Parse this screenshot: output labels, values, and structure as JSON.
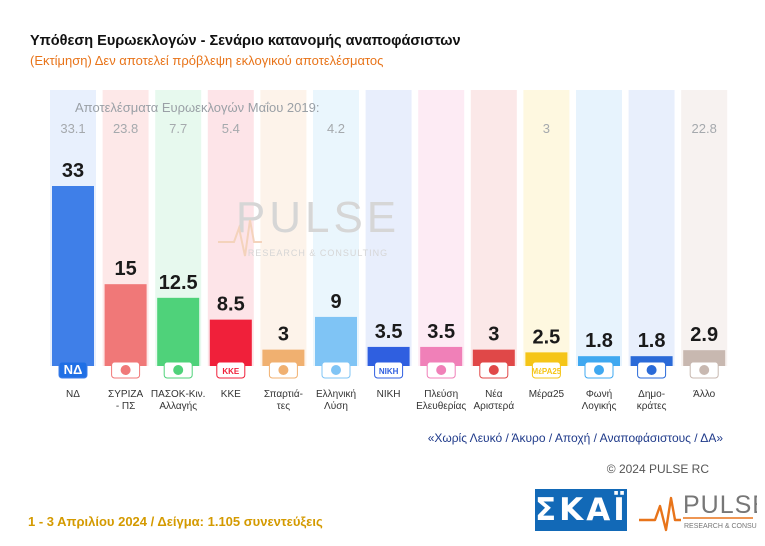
{
  "header": {
    "title": "Υπόθεση Ευρωεκλογών - Σενάριο κατανομής αναποφάσιστων",
    "subtitle": "(Εκτίμηση)   Δεν αποτελεί πρόβλεψη εκλογικού αποτελέσματος"
  },
  "chart_data": {
    "type": "bar",
    "reference_label": "Αποτελέσματα Ευρωεκλογών Μαΐου 2019:",
    "categories": [
      "ΝΔ",
      "ΣΥΡΙΖΑ - ΠΣ",
      "ΠΑΣΟΚ-Κιν. Αλλαγής",
      "ΚΚΕ",
      "Σπαρτιά- τες",
      "Ελληνική Λύση",
      "ΝΙΚΗ",
      "Πλεύση Ελευθερίας",
      "Νέα Αριστερά",
      "Μέρα25",
      "Φωνή Λογικής",
      "Δημο- κράτες",
      "Άλλο"
    ],
    "category_lines": [
      [
        "ΝΔ"
      ],
      [
        "ΣΥΡΙΖΑ",
        "- ΠΣ"
      ],
      [
        "ΠΑΣΟΚ-Κιν.",
        "Αλλαγής"
      ],
      [
        "ΚΚΕ"
      ],
      [
        "Σπαρτιά-",
        "τες"
      ],
      [
        "Ελληνική",
        "Λύση"
      ],
      [
        "ΝΙΚΗ"
      ],
      [
        "Πλεύση",
        "Ελευθερίας"
      ],
      [
        "Νέα",
        "Αριστερά"
      ],
      [
        "Μέρα25"
      ],
      [
        "Φωνή",
        "Λογικής"
      ],
      [
        "Δημο-",
        "κράτες"
      ],
      [
        "Άλλο"
      ]
    ],
    "values": [
      33,
      15,
      12.5,
      8.5,
      3,
      9,
      3.5,
      3.5,
      3,
      2.5,
      1.8,
      1.8,
      2.9
    ],
    "value_labels": [
      "33",
      "15",
      "12.5",
      "8.5",
      "3",
      "9",
      "3.5",
      "3.5",
      "3",
      "2.5",
      "1.8",
      "1.8",
      "2.9"
    ],
    "results_2019": [
      "33.1",
      "23.8",
      "7.7",
      "5.4",
      "",
      "4.2",
      "",
      "",
      "",
      "3",
      "",
      "",
      "22.8"
    ],
    "colors": [
      "#3f7fe8",
      "#f07878",
      "#4fd27a",
      "#f0203a",
      "#f0b070",
      "#7fc4f5",
      "#2f5fe0",
      "#f080b8",
      "#e04848",
      "#f5c518",
      "#3fa8f0",
      "#2a6ad8",
      "#c8b8b0"
    ],
    "background_colors": [
      "#e8f0fd",
      "#fde8e8",
      "#e7f9ee",
      "#fde4e8",
      "#fdf3ea",
      "#eaf6fd",
      "#e8eefc",
      "#fdebf4",
      "#fbe8e8",
      "#fef8e0",
      "#e7f3fd",
      "#e8effc",
      "#f7f2f0"
    ],
    "logo_icons": [
      "nd-logo-icon",
      "syriza-logo-icon",
      "pasok-logo-icon",
      "kke-logo-icon",
      "spartiates-logo-icon",
      "elliniki-lysi-logo-icon",
      "niki-logo-icon",
      "plefsi-logo-icon",
      "nea-aristera-logo-icon",
      "mera25-logo-icon",
      "foni-logikis-logo-icon",
      "dimokrates-logo-icon",
      "allo-icon"
    ],
    "logo_text": [
      "ΝΔ",
      "",
      "",
      "ΚΚΕ",
      "",
      "",
      "ΝΙΚΗ",
      "",
      "",
      "ΜέΡΑ25",
      "",
      "",
      ""
    ],
    "ylim": [
      0,
      33
    ],
    "grid": false
  },
  "watermark": {
    "brand": "PULSE",
    "tagline": "RESEARCH & CONSULTING"
  },
  "note": "«Χωρίς Λευκό / Άκυρο / Αποχή / Αναποφάσιστους / ΔΑ»",
  "copyright": "© 2024 PULSE RC",
  "footer": "1 - 3  Απριλίου 2024  /  Δείγμα:  1.105 συνεντεύξεις",
  "logos": {
    "skai": "ΣΚΑΪ",
    "pulse": "PULSE",
    "pulse_tagline": "RESEARCH & CONSULTING",
    "pulse_color": "#e8741a"
  }
}
